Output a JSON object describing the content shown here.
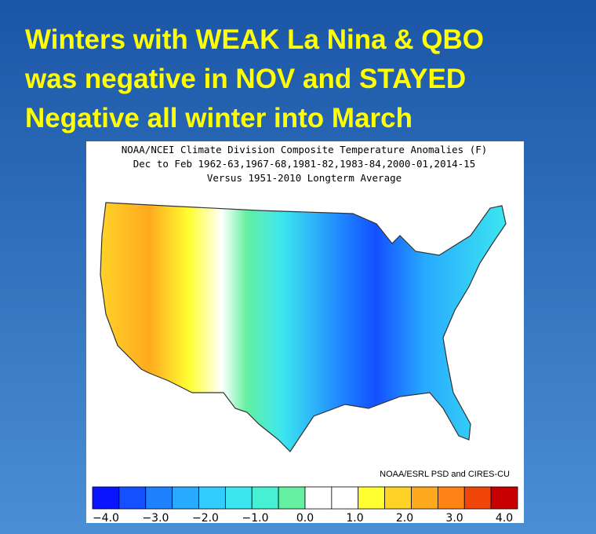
{
  "slide": {
    "title_lines": [
      "Winters  with WEAK La Nina  & QBO",
      "was negative in NOV  and STAYED",
      "Negative all  winter into March"
    ]
  },
  "map": {
    "header_lines": [
      "NOAA/NCEI Climate Division Composite Temperature Anomalies (F)",
      "Dec to Feb  1962-63,1967-68,1981-82,1983-84,2000-01,2014-15",
      "Versus 1951-2010 Longterm Average"
    ],
    "credit": "NOAA/ESRL PSD and CIRES-CU",
    "colorbar": {
      "colors": [
        "#0a14ff",
        "#1450ff",
        "#1e82ff",
        "#28aaff",
        "#32cdff",
        "#3ce6f0",
        "#46f0d2",
        "#64f0a0",
        "#ffffff",
        "#ffffff",
        "#ffff32",
        "#ffd228",
        "#ffaa1e",
        "#ff8214",
        "#f0460a",
        "#c80000"
      ],
      "ticks": [
        {
          "value": -4,
          "label": "−4.0"
        },
        {
          "value": -3,
          "label": "−3.0"
        },
        {
          "value": -2,
          "label": "−2.0"
        },
        {
          "value": -1,
          "label": "−1.0"
        },
        {
          "value": 0,
          "label": "0.0"
        },
        {
          "value": 1,
          "label": "1.0"
        },
        {
          "value": 2,
          "label": "2.0"
        },
        {
          "value": 3,
          "label": "3.0"
        },
        {
          "value": 4,
          "label": "4.0"
        }
      ]
    }
  }
}
